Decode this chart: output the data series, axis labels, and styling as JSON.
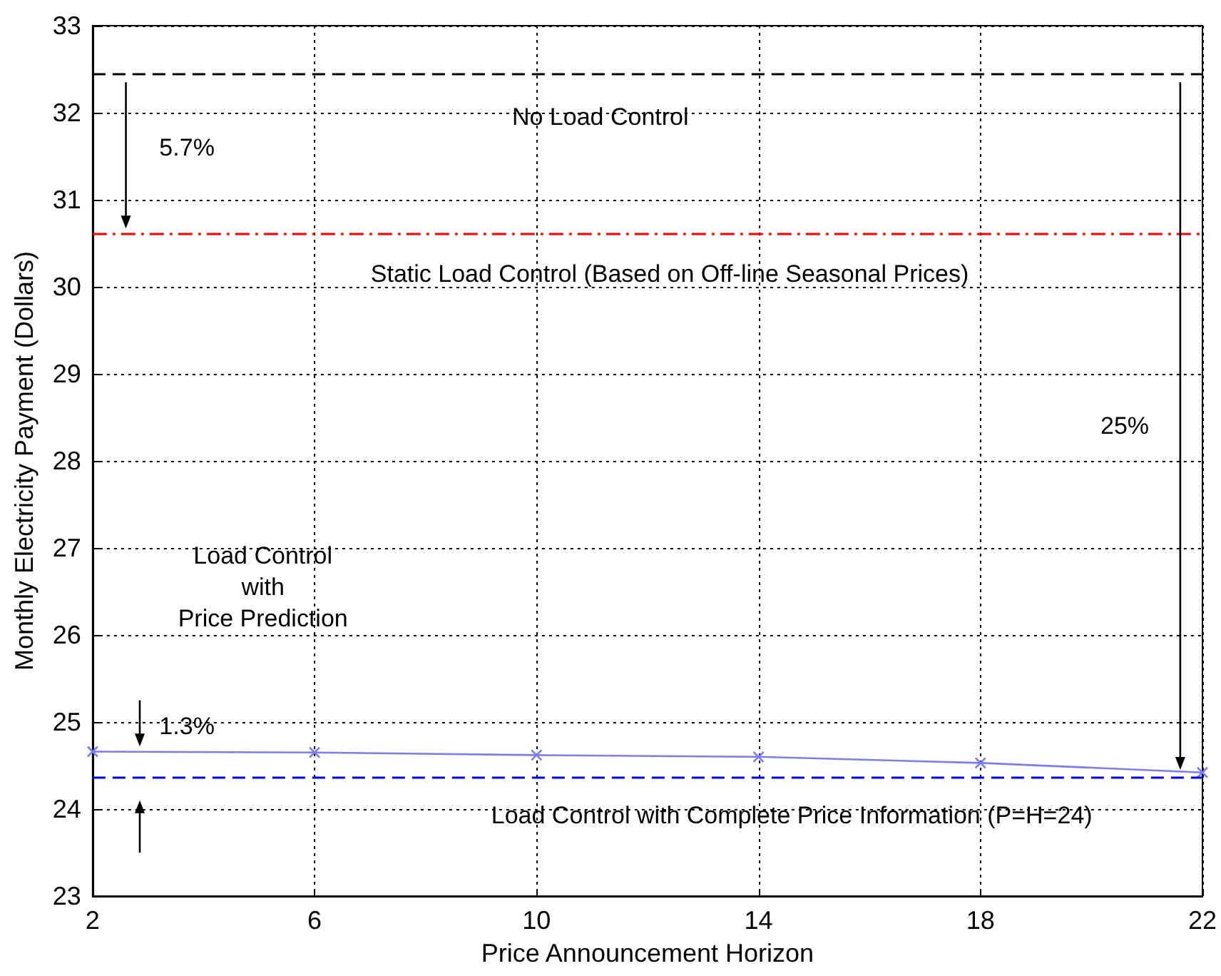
{
  "chart_data": {
    "type": "line",
    "xlabel": "Price Announcement Horizon",
    "ylabel": "Monthly Electricity Payment (Dollars)",
    "x": [
      2,
      6,
      10,
      14,
      18,
      22
    ],
    "series": [
      {
        "color": "#7b7bff",
        "values": [
          24.66,
          24.65,
          24.62,
          24.6,
          24.53,
          24.42
        ]
      }
    ],
    "marker": "cross",
    "line_style": "solid",
    "xlim": [
      2,
      22
    ],
    "xticks": [
      2,
      6,
      10,
      14,
      18,
      22
    ],
    "ylim": [
      23,
      33
    ],
    "yticks": [
      23,
      24,
      25,
      26,
      27,
      28,
      29,
      30,
      31,
      32,
      33
    ],
    "grid": true,
    "ref_lines": [
      {
        "axis": "y",
        "value": 32.44,
        "label": "No Load Control",
        "color": "#000000",
        "line_style": "dashed"
      },
      {
        "axis": "y",
        "value": 30.61,
        "label": "Static Load Control (Based on Off-line Seasonal Prices)",
        "color": "#ff0000",
        "line_style": "dashdot"
      },
      {
        "axis": "y",
        "value": 24.37,
        "label": "Load Control with Complete Price Information (P=H=24)",
        "color": "#0000ff",
        "line_style": "dashed"
      }
    ],
    "annotations": [
      "5.7%",
      "25%",
      "1.3%",
      "Load Control\nwith\nPrice Prediction"
    ]
  }
}
